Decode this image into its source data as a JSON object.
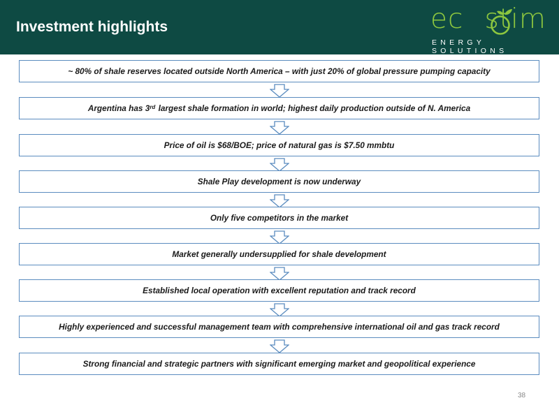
{
  "header": {
    "title": "Investment highlights",
    "logo": {
      "word_prefix": "ec",
      "word_suffix": "stim",
      "tagline": "ENERGY SOLUTIONS"
    },
    "background_color": "#0e4a43",
    "logo_color": "#8cc63f"
  },
  "flow": {
    "border_color": "#5b8cbf",
    "items": [
      {
        "text": "~ 80% of shale reserves located outside North America – with just 20% of global pressure pumping capacity"
      },
      {
        "text_before": "Argentina has 3",
        "superscript": "rd",
        "text_after": " largest shale formation in world; highest daily production outside of N. America"
      },
      {
        "text": "Price of oil is $68/BOE; price of natural gas is $7.50 mmbtu"
      },
      {
        "text": "Shale Play development is now underway"
      },
      {
        "text": "Only five competitors in the market"
      },
      {
        "text": "Market generally undersupplied for shale development"
      },
      {
        "text": "Established local operation with excellent reputation and track record"
      },
      {
        "text": "Highly experienced and successful management team with comprehensive international oil and gas track record"
      },
      {
        "text": "Strong financial and strategic partners with significant emerging market and geopolitical experience"
      }
    ]
  },
  "footer": {
    "page_number": "38"
  }
}
